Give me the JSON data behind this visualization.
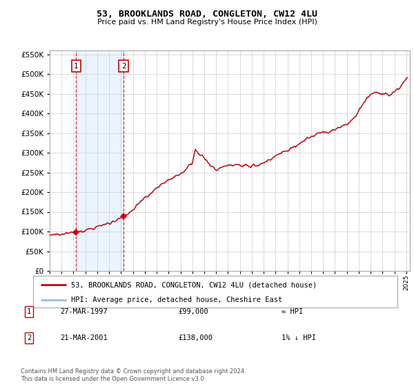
{
  "title": "53, BROOKLANDS ROAD, CONGLETON, CW12 4LU",
  "subtitle": "Price paid vs. HM Land Registry's House Price Index (HPI)",
  "legend_label_red": "53, BROOKLANDS ROAD, CONGLETON, CW12 4LU (detached house)",
  "legend_label_blue": "HPI: Average price, detached house, Cheshire East",
  "sale1_date": "27-MAR-1997",
  "sale1_price": 99000,
  "sale1_label": "≈ HPI",
  "sale2_date": "21-MAR-2001",
  "sale2_price": 138000,
  "sale2_label": "1% ↓ HPI",
  "footnote": "Contains HM Land Registry data © Crown copyright and database right 2024.\nThis data is licensed under the Open Government Licence v3.0.",
  "ylim": [
    0,
    560000
  ],
  "yticks": [
    0,
    50000,
    100000,
    150000,
    200000,
    250000,
    300000,
    350000,
    400000,
    450000,
    500000,
    550000
  ],
  "sale1_x": 1997.23,
  "sale2_x": 2001.22,
  "bg_color": "#ffffff",
  "grid_color": "#cccccc",
  "red_color": "#cc0000",
  "blue_color": "#99bbdd",
  "box_shade_color": "#ddeeff"
}
